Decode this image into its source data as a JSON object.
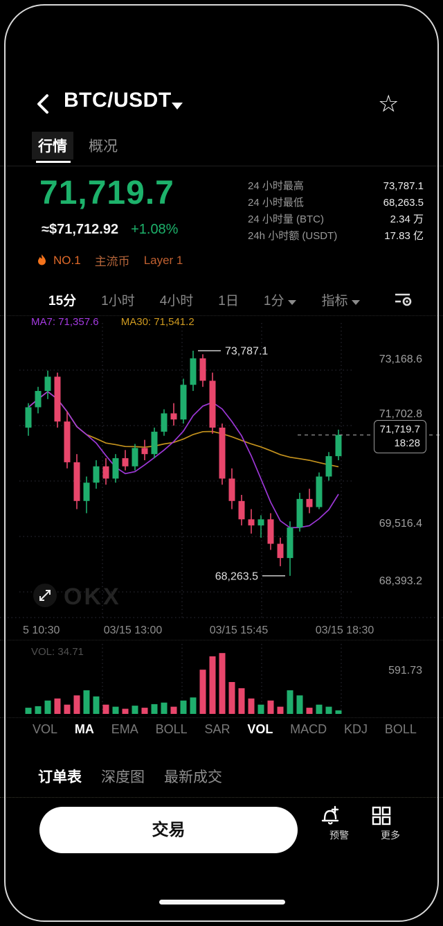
{
  "header": {
    "title": "BTC/USDT"
  },
  "tabs": {
    "quotes": "行情",
    "overview": "概况"
  },
  "price": {
    "last": "71,719.7",
    "fiat": "≈$71,712.92",
    "change": "+1.08%",
    "badges": [
      "NO.1",
      "主流币",
      "Layer 1"
    ]
  },
  "stats": [
    {
      "label": "24 小时最高",
      "value": "73,787.1"
    },
    {
      "label": "24 小时最低",
      "value": "68,263.5"
    },
    {
      "label": "24 小时量 (BTC)",
      "value": "2.34 万"
    },
    {
      "label": "24h 小时额 (USDT)",
      "value": "17.83 亿"
    }
  ],
  "timeframes": {
    "items": [
      "15分",
      "1小时",
      "4小时",
      "1日"
    ],
    "active": "15分",
    "dropdown": "1分",
    "indicator_menu": "指标"
  },
  "chart_data": {
    "type": "candlestick",
    "interval": "15m",
    "ma_labels": {
      "ma7": "MA7: 71,357.6",
      "ma30": "MA30: 71,541.2"
    },
    "y_axis_labels": [
      "73,168.6",
      "71,702.8",
      "69,516.4",
      "68,393.2"
    ],
    "x_axis_labels": [
      "5 10:30",
      "03/15 13:00",
      "03/15 15:45",
      "03/15 18:30"
    ],
    "high_annotation": "73,787.1",
    "low_annotation": "68,263.5",
    "last_price_tag": {
      "price": "71,719.7",
      "time": "18:28"
    },
    "high": 73787.1,
    "low": 68263.5,
    "candles_ohlcv": [
      [
        71900,
        72500,
        71700,
        72400,
        60
      ],
      [
        72400,
        72900,
        72250,
        72800,
        75
      ],
      [
        72800,
        73300,
        72600,
        73150,
        130
      ],
      [
        73150,
        73250,
        71900,
        72050,
        150
      ],
      [
        72050,
        72300,
        70900,
        71050,
        90
      ],
      [
        71050,
        71250,
        69900,
        70100,
        180
      ],
      [
        70100,
        70700,
        69800,
        70550,
        230
      ],
      [
        70550,
        71100,
        70400,
        70950,
        170
      ],
      [
        70950,
        71150,
        70500,
        70650,
        90
      ],
      [
        70650,
        71250,
        70550,
        71150,
        70
      ],
      [
        71150,
        71350,
        70850,
        70950,
        50
      ],
      [
        70950,
        71500,
        70850,
        71400,
        80
      ],
      [
        71400,
        71600,
        71100,
        71250,
        60
      ],
      [
        71250,
        71900,
        71150,
        71800,
        95
      ],
      [
        71800,
        72350,
        71700,
        72250,
        110
      ],
      [
        72250,
        72500,
        71950,
        72100,
        70
      ],
      [
        72100,
        73100,
        72000,
        72950,
        130
      ],
      [
        72950,
        73787.1,
        72800,
        73600,
        160
      ],
      [
        73600,
        73700,
        72900,
        73050,
        430
      ],
      [
        73050,
        73250,
        71750,
        71900,
        560
      ],
      [
        71900,
        72000,
        70500,
        70650,
        591.73
      ],
      [
        70650,
        70900,
        69900,
        70100,
        310
      ],
      [
        70100,
        70250,
        69500,
        69650,
        250
      ],
      [
        69650,
        69900,
        69300,
        69500,
        150
      ],
      [
        69500,
        69750,
        69200,
        69650,
        90
      ],
      [
        69650,
        69800,
        68900,
        69050,
        130
      ],
      [
        69050,
        69200,
        68500,
        68700,
        70
      ],
      [
        68700,
        69600,
        68263.5,
        69450,
        230
      ],
      [
        69450,
        70300,
        69350,
        70150,
        180
      ],
      [
        70150,
        70400,
        69800,
        69950,
        60
      ],
      [
        69950,
        70800,
        69900,
        70700,
        90
      ],
      [
        70700,
        71300,
        70600,
        71200,
        70
      ],
      [
        71200,
        71850,
        71100,
        71719.7,
        34.71
      ]
    ],
    "volume": {
      "label": "VOL: 34.71",
      "axis_max": "591.73"
    },
    "colors": {
      "up": "#1fae6d",
      "down": "#e8466b",
      "ma7": "#a43ae1",
      "ma30": "#cf9a1f"
    },
    "legend_position": "top-left",
    "grid": true
  },
  "indicator_tabs": {
    "items": [
      "VOL",
      "MA",
      "EMA",
      "BOLL",
      "SAR",
      "VOL",
      "MACD",
      "KDJ",
      "BOLL"
    ]
  },
  "bottom_tabs": [
    "订单表",
    "深度图",
    "最新成交"
  ],
  "actions": {
    "trade": "交易",
    "alert": "预警",
    "more": "更多"
  },
  "watermark": "OKX"
}
